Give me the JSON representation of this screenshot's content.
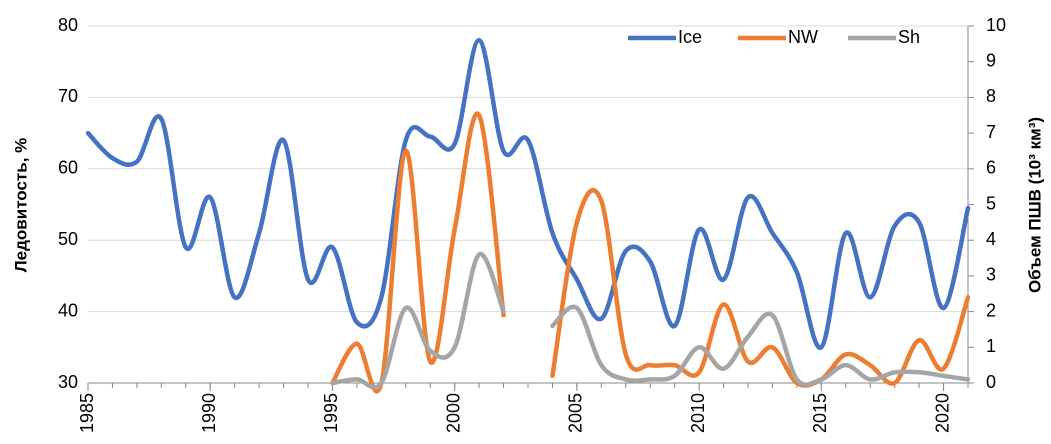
{
  "chart_data": {
    "type": "line",
    "y_label": "Ледовитость, %",
    "y2_label": "Объем ПШВ (10³ км³)",
    "x": [
      1985,
      1986,
      1987,
      1988,
      1989,
      1990,
      1991,
      1992,
      1993,
      1994,
      1995,
      1996,
      1997,
      1998,
      1999,
      2000,
      2001,
      2002,
      2003,
      2004,
      2005,
      2006,
      2007,
      2008,
      2009,
      2010,
      2011,
      2012,
      2013,
      2014,
      2015,
      2016,
      2017,
      2018,
      2019,
      2020,
      2021
    ],
    "series": [
      {
        "name": "Ice",
        "color": "#4472c4",
        "axis": "y",
        "values": [
          65,
          61.5,
          61,
          67,
          49,
          56,
          42,
          51,
          64,
          44.5,
          49,
          38.5,
          42,
          64,
          64.5,
          63.5,
          78,
          62.5,
          64,
          51,
          44.5,
          39,
          48.5,
          47,
          38,
          51.5,
          44.5,
          56,
          51,
          45.5,
          35,
          51,
          42,
          52,
          52.5,
          40.5,
          54.5
        ]
      },
      {
        "name": "NW",
        "color": "#ed7d31",
        "axis": "y2",
        "values": [
          null,
          null,
          null,
          null,
          null,
          null,
          null,
          null,
          null,
          null,
          0,
          1.1,
          0,
          6.5,
          0.6,
          4.3,
          7.5,
          1.9,
          null,
          0.2,
          4.5,
          5.1,
          0.8,
          0.5,
          0.5,
          0.3,
          2.2,
          0.6,
          1.0,
          0,
          0.1,
          0.8,
          0.5,
          0,
          1.2,
          0.4,
          2.4
        ]
      },
      {
        "name": "Sh",
        "color": "#a5a5a5",
        "axis": "y2",
        "values": [
          null,
          null,
          null,
          null,
          null,
          null,
          null,
          null,
          null,
          null,
          0,
          0.1,
          0,
          2.1,
          0.9,
          1.0,
          3.6,
          2.0,
          null,
          1.6,
          2.1,
          0.5,
          0.1,
          0.1,
          0.2,
          1.0,
          0.4,
          1.3,
          1.9,
          0.1,
          0.1,
          0.5,
          0.1,
          0.3,
          0.3,
          0.2,
          0.1
        ]
      }
    ],
    "xlim": [
      1985,
      2021
    ],
    "xticks": [
      1985,
      1990,
      1995,
      2000,
      2005,
      2010,
      2015,
      2020
    ],
    "ylim": [
      30,
      80
    ],
    "yticks": [
      30,
      40,
      50,
      60,
      70,
      80
    ],
    "y2lim": [
      0,
      10
    ],
    "y2ticks": [
      0,
      1,
      2,
      3,
      4,
      5,
      6,
      7,
      8,
      9,
      10
    ],
    "grid": true,
    "legend": "top-right"
  }
}
